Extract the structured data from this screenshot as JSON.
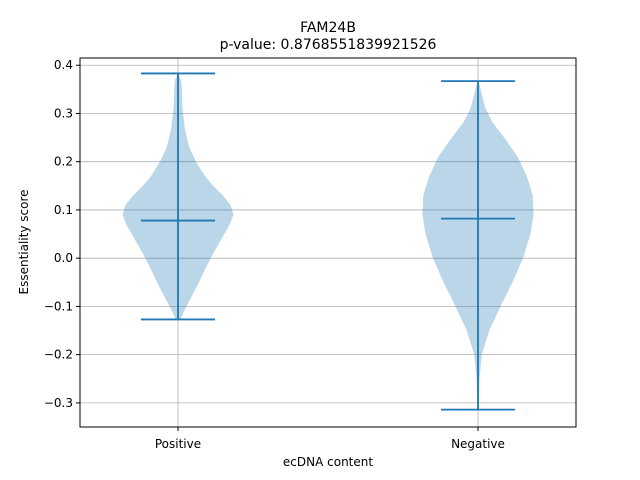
{
  "chart_data": {
    "type": "violin",
    "title": "FAM24B",
    "subtitle": "p-value: 0.8768551839921526",
    "xlabel": "ecDNA content",
    "ylabel": "Essentiality score",
    "ylim": [
      -0.35,
      0.415
    ],
    "yticks": [
      -0.3,
      -0.2,
      -0.1,
      0.0,
      0.1,
      0.2,
      0.3,
      0.4
    ],
    "ytick_labels": [
      "−0.3",
      "−0.2",
      "−0.1",
      "0.0",
      "0.1",
      "0.2",
      "0.3",
      "0.4"
    ],
    "grid": true,
    "categories": [
      "Positive",
      "Negative"
    ],
    "colors": {
      "violin_fill": "#1f77b4",
      "violin_alpha": 0.3,
      "lines": "#1f77b4",
      "grid": "#b0b0b0"
    },
    "series": [
      {
        "category": "Positive",
        "min": -0.127,
        "median": 0.078,
        "max": 0.383,
        "density_half_width": [
          [
            -0.127,
            0.03
          ],
          [
            -0.11,
            0.08
          ],
          [
            -0.08,
            0.18
          ],
          [
            -0.05,
            0.28
          ],
          [
            -0.02,
            0.37
          ],
          [
            0.01,
            0.47
          ],
          [
            0.04,
            0.58
          ],
          [
            0.07,
            0.69
          ],
          [
            0.09,
            0.74
          ],
          [
            0.11,
            0.7
          ],
          [
            0.13,
            0.6
          ],
          [
            0.15,
            0.47
          ],
          [
            0.17,
            0.36
          ],
          [
            0.2,
            0.24
          ],
          [
            0.23,
            0.15
          ],
          [
            0.27,
            0.09
          ],
          [
            0.31,
            0.06
          ],
          [
            0.35,
            0.05
          ],
          [
            0.37,
            0.04
          ],
          [
            0.383,
            0.0
          ]
        ]
      },
      {
        "category": "Negative",
        "min": -0.314,
        "median": 0.082,
        "max": 0.367,
        "density_half_width": [
          [
            -0.314,
            0.0
          ],
          [
            -0.3,
            0.01
          ],
          [
            -0.25,
            0.02
          ],
          [
            -0.2,
            0.05
          ],
          [
            -0.15,
            0.15
          ],
          [
            -0.1,
            0.3
          ],
          [
            -0.05,
            0.46
          ],
          [
            0.0,
            0.6
          ],
          [
            0.05,
            0.7
          ],
          [
            0.09,
            0.74
          ],
          [
            0.13,
            0.73
          ],
          [
            0.17,
            0.65
          ],
          [
            0.21,
            0.53
          ],
          [
            0.25,
            0.35
          ],
          [
            0.28,
            0.2
          ],
          [
            0.31,
            0.1
          ],
          [
            0.34,
            0.05
          ],
          [
            0.36,
            0.02
          ],
          [
            0.367,
            0.0
          ]
        ]
      }
    ]
  }
}
